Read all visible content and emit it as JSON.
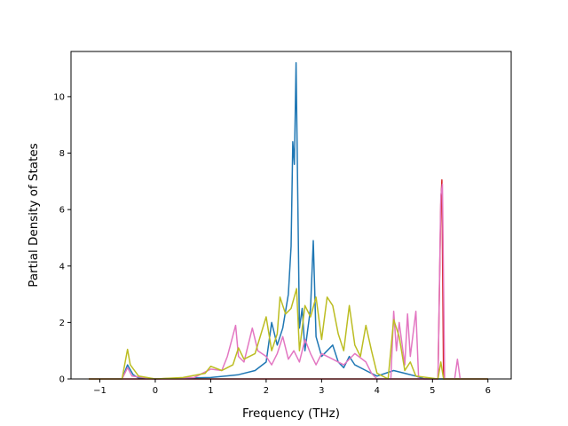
{
  "chart_data": {
    "type": "line",
    "title": "",
    "xlabel": "Frequency (THz)",
    "ylabel": "Partial Density of States",
    "xlim": [
      -1.52,
      6.42
    ],
    "ylim": [
      0,
      11.6
    ],
    "xticks": [
      -1,
      0,
      1,
      2,
      3,
      4,
      5,
      6
    ],
    "yticks": [
      0,
      2,
      4,
      6,
      8,
      10
    ],
    "grid": false,
    "legend": "none",
    "series": [
      {
        "color": "#1f77b4",
        "points": [
          [
            -1.2,
            0
          ],
          [
            -0.6,
            0
          ],
          [
            -0.5,
            0.5
          ],
          [
            -0.4,
            0.15
          ],
          [
            -0.3,
            0.03
          ],
          [
            0,
            0
          ],
          [
            0.5,
            0.03
          ],
          [
            1.0,
            0.05
          ],
          [
            1.5,
            0.15
          ],
          [
            1.8,
            0.3
          ],
          [
            2.0,
            0.6
          ],
          [
            2.1,
            2.0
          ],
          [
            2.2,
            1.2
          ],
          [
            2.3,
            1.8
          ],
          [
            2.4,
            3.0
          ],
          [
            2.45,
            4.7
          ],
          [
            2.48,
            8.4
          ],
          [
            2.51,
            7.6
          ],
          [
            2.54,
            11.2
          ],
          [
            2.6,
            1.8
          ],
          [
            2.65,
            2.5
          ],
          [
            2.7,
            1.0
          ],
          [
            2.8,
            2.5
          ],
          [
            2.85,
            4.9
          ],
          [
            2.9,
            1.5
          ],
          [
            3.0,
            0.8
          ],
          [
            3.1,
            1.0
          ],
          [
            3.2,
            1.2
          ],
          [
            3.3,
            0.6
          ],
          [
            3.4,
            0.4
          ],
          [
            3.5,
            0.8
          ],
          [
            3.6,
            0.5
          ],
          [
            3.8,
            0.3
          ],
          [
            4.0,
            0.1
          ],
          [
            4.3,
            0.3
          ],
          [
            4.5,
            0.2
          ],
          [
            4.7,
            0.1
          ],
          [
            4.85,
            0
          ],
          [
            6.0,
            0
          ]
        ]
      },
      {
        "color": "#d62728",
        "points": [
          [
            -1.2,
            0
          ],
          [
            4.9,
            0
          ],
          [
            5.1,
            0
          ],
          [
            5.15,
            6.2
          ],
          [
            5.17,
            7.05
          ],
          [
            5.2,
            0
          ],
          [
            6.0,
            0
          ]
        ]
      },
      {
        "color": "#e377c2",
        "points": [
          [
            -1.2,
            0
          ],
          [
            -0.6,
            0
          ],
          [
            -0.5,
            0.4
          ],
          [
            -0.42,
            0.1
          ],
          [
            0,
            0
          ],
          [
            0.7,
            0.05
          ],
          [
            1.0,
            0.35
          ],
          [
            1.2,
            0.3
          ],
          [
            1.3,
            0.8
          ],
          [
            1.45,
            1.9
          ],
          [
            1.5,
            0.8
          ],
          [
            1.6,
            0.6
          ],
          [
            1.75,
            1.8
          ],
          [
            1.85,
            1.0
          ],
          [
            2.0,
            0.8
          ],
          [
            2.1,
            0.5
          ],
          [
            2.2,
            0.9
          ],
          [
            2.3,
            1.5
          ],
          [
            2.4,
            0.7
          ],
          [
            2.5,
            1.0
          ],
          [
            2.6,
            0.6
          ],
          [
            2.7,
            1.4
          ],
          [
            2.8,
            0.9
          ],
          [
            2.9,
            0.5
          ],
          [
            3.0,
            0.9
          ],
          [
            3.2,
            0.7
          ],
          [
            3.4,
            0.5
          ],
          [
            3.6,
            0.9
          ],
          [
            3.8,
            0.6
          ],
          [
            3.9,
            0.2
          ],
          [
            4.0,
            0
          ],
          [
            4.25,
            0
          ],
          [
            4.3,
            2.4
          ],
          [
            4.35,
            1.0
          ],
          [
            4.4,
            2.0
          ],
          [
            4.5,
            0.5
          ],
          [
            4.55,
            2.3
          ],
          [
            4.6,
            0.8
          ],
          [
            4.7,
            2.4
          ],
          [
            4.75,
            0
          ],
          [
            5.1,
            0
          ],
          [
            5.15,
            6.5
          ],
          [
            5.18,
            6.9
          ],
          [
            5.22,
            0
          ],
          [
            5.4,
            0
          ],
          [
            5.45,
            0.7
          ],
          [
            5.5,
            0
          ],
          [
            6.0,
            0
          ]
        ]
      },
      {
        "color": "#bcbd22",
        "points": [
          [
            -1.2,
            0
          ],
          [
            -0.6,
            0
          ],
          [
            -0.5,
            1.05
          ],
          [
            -0.45,
            0.5
          ],
          [
            -0.3,
            0.1
          ],
          [
            0,
            0
          ],
          [
            0.5,
            0.05
          ],
          [
            0.9,
            0.2
          ],
          [
            1.0,
            0.45
          ],
          [
            1.2,
            0.3
          ],
          [
            1.4,
            0.5
          ],
          [
            1.5,
            1.1
          ],
          [
            1.6,
            0.7
          ],
          [
            1.8,
            0.9
          ],
          [
            2.0,
            2.2
          ],
          [
            2.1,
            1.0
          ],
          [
            2.2,
            1.6
          ],
          [
            2.25,
            2.9
          ],
          [
            2.35,
            2.3
          ],
          [
            2.45,
            2.5
          ],
          [
            2.55,
            3.2
          ],
          [
            2.6,
            1.0
          ],
          [
            2.7,
            2.6
          ],
          [
            2.8,
            2.2
          ],
          [
            2.9,
            2.9
          ],
          [
            3.0,
            1.4
          ],
          [
            3.1,
            2.9
          ],
          [
            3.2,
            2.6
          ],
          [
            3.3,
            1.6
          ],
          [
            3.4,
            1.0
          ],
          [
            3.5,
            2.6
          ],
          [
            3.6,
            1.2
          ],
          [
            3.7,
            0.8
          ],
          [
            3.8,
            1.9
          ],
          [
            3.9,
            1.0
          ],
          [
            4.0,
            0.2
          ],
          [
            4.2,
            0
          ],
          [
            4.3,
            2.1
          ],
          [
            4.4,
            1.5
          ],
          [
            4.5,
            0.3
          ],
          [
            4.6,
            0.6
          ],
          [
            4.7,
            0.1
          ],
          [
            5.1,
            0
          ],
          [
            5.15,
            0.6
          ],
          [
            5.2,
            0
          ],
          [
            6.0,
            0
          ]
        ]
      }
    ]
  }
}
